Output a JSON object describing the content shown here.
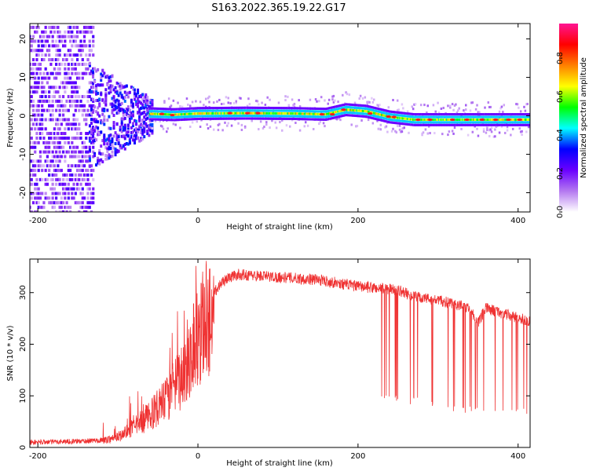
{
  "chart_data": [
    {
      "type": "heatmap",
      "title": "S163.2022.365.19.22.G17",
      "xlabel": "Height of straight line (km)",
      "ylabel": "Frequency (Hz)",
      "xlim": [
        -210,
        415
      ],
      "ylim": [
        -25,
        24
      ],
      "xticks": [
        -200,
        0,
        200,
        400
      ],
      "yticks": [
        -20,
        -10,
        0,
        10,
        20
      ],
      "colorbar": {
        "label": "Normalized spectral amplitude",
        "range": [
          0,
          0.98
        ],
        "ticks": [
          0,
          0.2,
          0.4,
          0.6,
          0.8
        ],
        "colors": [
          "#ffffff",
          "#b478f0",
          "#6a00ff",
          "#0000ff",
          "#00ffff",
          "#00ff00",
          "#ffff00",
          "#ff8000",
          "#ff0000",
          "#ff1493"
        ]
      },
      "signal_track": [
        {
          "x": -55,
          "y": 0.5
        },
        {
          "x": -30,
          "y": 0.3
        },
        {
          "x": 0,
          "y": 0.6
        },
        {
          "x": 60,
          "y": 0.7
        },
        {
          "x": 120,
          "y": 0.6
        },
        {
          "x": 160,
          "y": 0.4
        },
        {
          "x": 185,
          "y": 1.6
        },
        {
          "x": 210,
          "y": 1.2
        },
        {
          "x": 240,
          "y": -0.3
        },
        {
          "x": 270,
          "y": -1.0
        },
        {
          "x": 330,
          "y": -1.0
        },
        {
          "x": 415,
          "y": -1.0
        }
      ]
    },
    {
      "type": "line",
      "title": "",
      "xlabel": "Height of straight line (km)",
      "ylabel": "SNR (10 * v/v)",
      "xlim": [
        -210,
        415
      ],
      "ylim": [
        0,
        365
      ],
      "xticks": [
        -200,
        0,
        200,
        400
      ],
      "yticks": [
        0,
        100,
        200,
        300
      ],
      "series": [
        {
          "name": "SNR",
          "color": "#ef3232",
          "x": [
            -210,
            -150,
            -120,
            -100,
            -80,
            -60,
            -40,
            -20,
            -10,
            0,
            10,
            20,
            30,
            40,
            50,
            100,
            150,
            200,
            250,
            270,
            300,
            340,
            350,
            360,
            400,
            415
          ],
          "y": [
            10,
            12,
            14,
            22,
            42,
            68,
            100,
            150,
            200,
            245,
            270,
            300,
            320,
            330,
            335,
            330,
            325,
            312,
            305,
            292,
            285,
            270,
            240,
            270,
            250,
            245
          ]
        }
      ],
      "dropout_floor": [
        {
          "x": 210,
          "y": 90
        },
        {
          "x": 260,
          "y": 85
        },
        {
          "x": 300,
          "y": 75
        },
        {
          "x": 340,
          "y": 65
        },
        {
          "x": 400,
          "y": 60
        },
        {
          "x": 415,
          "y": 60
        }
      ]
    }
  ]
}
